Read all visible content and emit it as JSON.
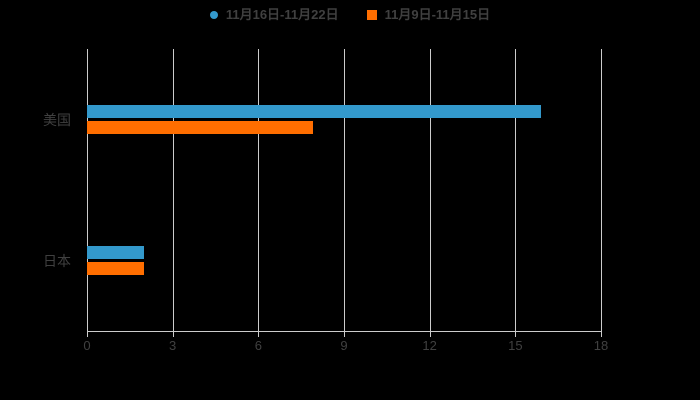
{
  "chart_data": {
    "type": "bar",
    "orientation": "horizontal",
    "title": "",
    "categories": [
      "美国",
      "日本"
    ],
    "series": [
      {
        "name": "11月16日-11月22日",
        "color": "#3399CC",
        "marker": "circle",
        "values": [
          15.9,
          2.0
        ]
      },
      {
        "name": "11月9日-11月15日",
        "color": "#FF6E00",
        "marker": "square",
        "values": [
          7.9,
          2.0
        ]
      }
    ],
    "xlim": [
      0,
      18
    ],
    "x_ticks": [
      0,
      3,
      6,
      9,
      12,
      15,
      18
    ],
    "grid": "vertical",
    "legend_position": "top"
  },
  "colors": {
    "background": "#000000",
    "gridline": "#cccccc",
    "axis": "#cccccc",
    "text": "#404040"
  }
}
